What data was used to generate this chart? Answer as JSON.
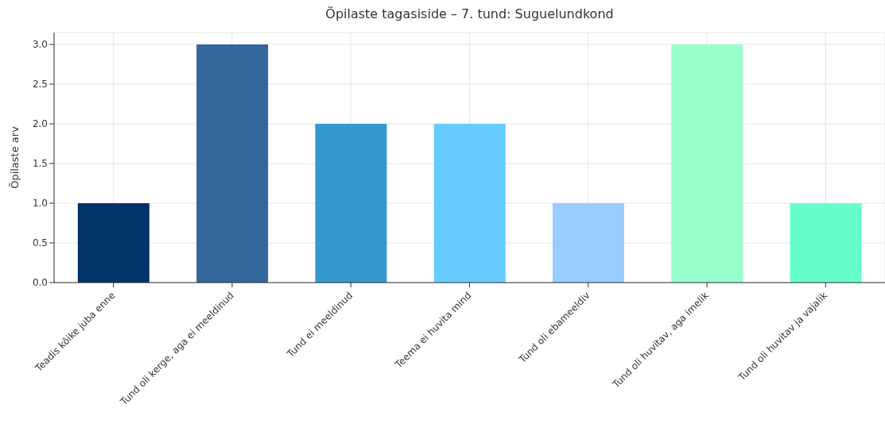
{
  "chart_data": {
    "type": "bar",
    "title": "Õpilaste tagasiside – 7. tund: Suguelundkond",
    "ylabel": "Õpilaste arv",
    "categories": [
      "Teadis kõike juba enne",
      "Tund oli kerge, aga ei meeldinud",
      "Tund ei meeldinud",
      "Teema ei huvita mind",
      "Tund oli ebameeldiv",
      "Tund oli huvitav, aga imelik",
      "Tund oli huvitav ja vajalik"
    ],
    "values": [
      1,
      3,
      2,
      2,
      1,
      3,
      1
    ],
    "colors": [
      "#003366",
      "#336699",
      "#3399cc",
      "#66ccff",
      "#99ccff",
      "#99ffcc",
      "#66ffcc"
    ],
    "ylim": [
      0,
      3.15
    ],
    "yticks": [
      {
        "value": 0,
        "label": "0.0"
      },
      {
        "value": 0.5,
        "label": "0.5"
      },
      {
        "value": 1,
        "label": "1.0"
      },
      {
        "value": 1.5,
        "label": "1.5"
      },
      {
        "value": 2,
        "label": "2.0"
      },
      {
        "value": 2.5,
        "label": "2.5"
      },
      {
        "value": 3,
        "label": "3.0"
      }
    ],
    "grid": true
  }
}
